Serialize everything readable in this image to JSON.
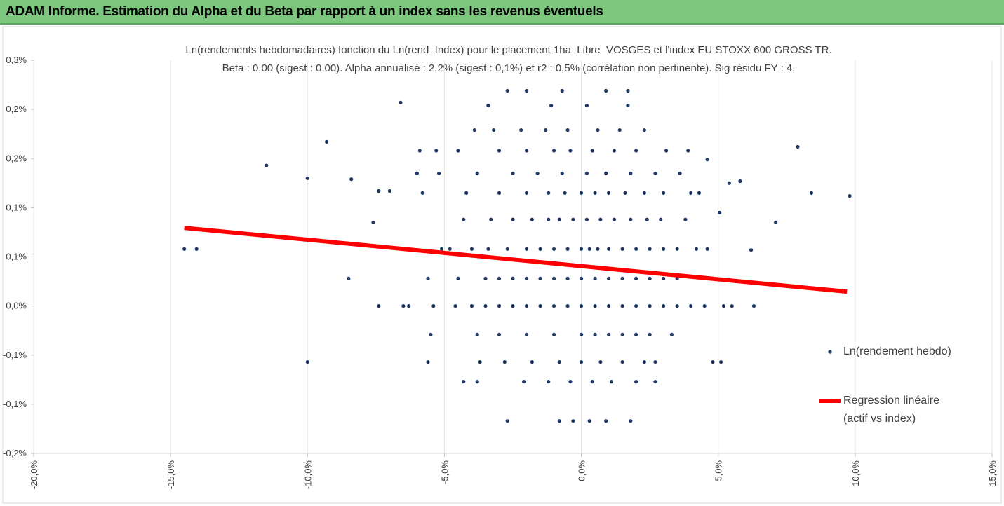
{
  "header": {
    "title": "ADAM Informe. Estimation du Alpha et du Beta par rapport à un index sans les revenus éventuels"
  },
  "chart_data": {
    "type": "scatter",
    "title": "Ln(rendements hebdomadaires) fonction du Ln(rend_Index) pour le placement 1ha_Libre_VOSGES et l'index EU STOXX 600 GROSS TR.",
    "subtitle": "Beta : 0,00 (sigest : 0,00). Alpha annualisé : 2,2% (sigest : 0,1%) et r2 : 0,5% (corrélation non pertinente). Sig résidu FY : 4,",
    "xlim": [
      -20,
      15
    ],
    "xticks": [
      {
        "value": -20,
        "label": "-20,0%"
      },
      {
        "value": -15,
        "label": "-15,0%"
      },
      {
        "value": -10,
        "label": "-10,0%"
      },
      {
        "value": -5,
        "label": "-5,0%"
      },
      {
        "value": 0,
        "label": "0,0%"
      },
      {
        "value": 5,
        "label": "5,0%"
      },
      {
        "value": 10,
        "label": "10,0%"
      },
      {
        "value": 15,
        "label": "15,0%"
      }
    ],
    "ylim": [
      -0.15,
      0.25
    ],
    "yticks": [
      {
        "value": 0.25,
        "label": "0,3%"
      },
      {
        "value": 0.2,
        "label": "0,2%"
      },
      {
        "value": 0.15,
        "label": "0,2%"
      },
      {
        "value": 0.1,
        "label": "0,1%"
      },
      {
        "value": 0.05,
        "label": "0,1%"
      },
      {
        "value": 0,
        "label": "0,0%"
      },
      {
        "value": -0.05,
        "label": "-0,1%"
      },
      {
        "value": -0.1,
        "label": "-0,1%"
      },
      {
        "value": -0.15,
        "label": "-0,2%"
      }
    ],
    "grid": "x",
    "legend": "right",
    "series": [
      {
        "name": "Ln(rendement hebdo)",
        "color": "#1f3864",
        "kind": "points",
        "x": [
          -14.5,
          -14.05,
          -11.5,
          -10.0,
          -10.0,
          -9.3,
          -8.5,
          -8.4,
          -7.6,
          -7.4,
          -7.4,
          -7.0,
          -6.6,
          7.9,
          8.4,
          9.8,
          7.1,
          6.2,
          6.3,
          4.8,
          5.1,
          5.05,
          5.4,
          5.8,
          4.6,
          -6.5,
          -6.3,
          -5.4,
          -4.6,
          -4,
          -3.5,
          -3,
          -2.5,
          -2,
          -1.5,
          -1,
          -0.5,
          0,
          0.5,
          1,
          1.5,
          2,
          2.5,
          3,
          3.5,
          4,
          4.5,
          5.2,
          5.5,
          -5.6,
          -4.5,
          -3.5,
          -3,
          -2.5,
          -2,
          -1.5,
          -1,
          -0.5,
          0,
          0.5,
          1,
          1.5,
          2,
          2.5,
          3,
          3.5,
          -5.1,
          -4.8,
          -4,
          -3.4,
          -2.7,
          -2,
          -1.5,
          -1,
          -0.5,
          0,
          0.3,
          0.6,
          1,
          1.5,
          2,
          2.5,
          3,
          3.5,
          4.2,
          4.6,
          -4.3,
          -3.3,
          -2.5,
          -1.8,
          -1.2,
          -0.8,
          -0.3,
          0.2,
          0.7,
          1.2,
          1.8,
          2.4,
          2.9,
          3.8,
          -5.8,
          -4.2,
          -3,
          -2,
          -1.2,
          -0.6,
          0,
          0.5,
          1,
          1.6,
          2.3,
          3,
          4,
          4.3,
          -6.0,
          -5.2,
          -3.8,
          -2.5,
          -1.6,
          -0.7,
          0.2,
          0.9,
          1.8,
          2.7,
          3.6,
          -5.9,
          -5.3,
          -4.5,
          -3.0,
          -2.0,
          -1.0,
          -0.4,
          0.4,
          1.2,
          2.0,
          3.1,
          3.9,
          -3.9,
          -3.2,
          -2.2,
          -1.3,
          -0.5,
          0.6,
          1.4,
          2.3,
          -3.4,
          -1.1,
          0.2,
          1.7,
          -2.7,
          -2.0,
          -0.7,
          0.9,
          1.7,
          -5.5,
          -3.8,
          -3,
          -2,
          -1,
          0,
          0.5,
          1,
          1.5,
          2,
          2.5,
          3.3,
          -5.6,
          -3.7,
          -2.8,
          -1.8,
          -0.8,
          0,
          0.7,
          1.5,
          2.3,
          2.7,
          -4.3,
          -3.8,
          -2.1,
          -1.2,
          -0.4,
          0.4,
          1.1,
          2.0,
          2.7,
          -2.7,
          -0.8,
          -0.3,
          0.3,
          0.9,
          1.8
        ],
        "values": [
          0.058,
          0.058,
          0.143,
          0.13,
          -0.057,
          0.167,
          0.028,
          0.129,
          0.085,
          0.117,
          0,
          0.117,
          0.207,
          0.162,
          0.115,
          0.112,
          0.085,
          0.057,
          0,
          -0.057,
          -0.057,
          0.095,
          0.125,
          0.127,
          0.149,
          0,
          0,
          0,
          0,
          0,
          0,
          0,
          0,
          0,
          0,
          0,
          0,
          0,
          0,
          0,
          0,
          0,
          0,
          0,
          0,
          0,
          0,
          0,
          0,
          0.028,
          0.028,
          0.028,
          0.028,
          0.028,
          0.028,
          0.028,
          0.028,
          0.028,
          0.028,
          0.028,
          0.028,
          0.028,
          0.028,
          0.028,
          0.028,
          0.028,
          0.058,
          0.058,
          0.058,
          0.058,
          0.058,
          0.058,
          0.058,
          0.058,
          0.058,
          0.058,
          0.058,
          0.058,
          0.058,
          0.058,
          0.058,
          0.058,
          0.058,
          0.058,
          0.058,
          0.058,
          0.088,
          0.088,
          0.088,
          0.088,
          0.088,
          0.088,
          0.088,
          0.088,
          0.088,
          0.088,
          0.088,
          0.088,
          0.088,
          0.088,
          0.115,
          0.115,
          0.115,
          0.115,
          0.115,
          0.115,
          0.115,
          0.115,
          0.115,
          0.115,
          0.115,
          0.115,
          0.115,
          0.115,
          0.135,
          0.135,
          0.135,
          0.135,
          0.135,
          0.135,
          0.135,
          0.135,
          0.135,
          0.135,
          0.135,
          0.158,
          0.158,
          0.158,
          0.158,
          0.158,
          0.158,
          0.158,
          0.158,
          0.158,
          0.158,
          0.158,
          0.158,
          0.179,
          0.179,
          0.179,
          0.179,
          0.179,
          0.179,
          0.179,
          0.179,
          0.204,
          0.204,
          0.204,
          0.204,
          0.219,
          0.219,
          0.219,
          0.219,
          0.219,
          -0.029,
          -0.029,
          -0.029,
          -0.029,
          -0.029,
          -0.029,
          -0.029,
          -0.029,
          -0.029,
          -0.029,
          -0.029,
          -0.029,
          -0.057,
          -0.057,
          -0.057,
          -0.057,
          -0.057,
          -0.057,
          -0.057,
          -0.057,
          -0.057,
          -0.057,
          -0.077,
          -0.077,
          -0.077,
          -0.077,
          -0.077,
          -0.077,
          -0.077,
          -0.077,
          -0.077,
          -0.117,
          -0.117,
          -0.117,
          -0.117,
          -0.117,
          -0.117
        ]
      },
      {
        "name": "Regression linéaire (actif vs index)",
        "color": "#ff0000",
        "kind": "line",
        "x": [
          -14.5,
          9.7
        ],
        "values": [
          0.0795,
          0.0146
        ]
      }
    ]
  }
}
